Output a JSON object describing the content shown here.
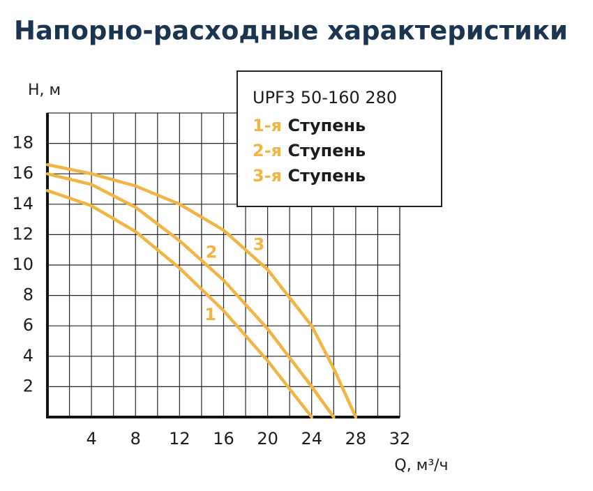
{
  "chart_data": {
    "type": "line",
    "title": "Напорно-расходные  характеристики",
    "y_label": "H, м",
    "x_label": "Q, м³/ч",
    "legend_title": "UPF3 50-160 280",
    "xlim": [
      0,
      32
    ],
    "ylim": [
      0,
      20
    ],
    "xticks": [
      4,
      8,
      12,
      16,
      20,
      24,
      28,
      32
    ],
    "x_minor_ticks": [
      2,
      6,
      10,
      14,
      18,
      22,
      26,
      30
    ],
    "yticks": [
      2,
      4,
      6,
      8,
      10,
      12,
      14,
      16,
      18
    ],
    "grid": true,
    "color": "#f2b443",
    "series": [
      {
        "name": "1-я Ступень",
        "label": "1",
        "label_x": 14.8,
        "label_y": 6.7,
        "x": [
          0,
          4,
          8,
          12,
          16,
          20,
          24
        ],
        "values": [
          14.9,
          13.9,
          12.2,
          9.8,
          7,
          3.7,
          0
        ]
      },
      {
        "name": "2-я Ступень",
        "label": "2",
        "label_x": 14.9,
        "label_y": 10.8,
        "x": [
          0,
          4,
          8,
          12,
          16,
          20,
          24,
          26
        ],
        "values": [
          16,
          15.3,
          13.8,
          11.6,
          9,
          5.8,
          2,
          0
        ]
      },
      {
        "name": "3-я Ступень",
        "label": "3",
        "label_x": 19.2,
        "label_y": 11.3,
        "x": [
          0,
          4,
          8,
          12,
          16,
          20,
          24,
          26,
          28
        ],
        "values": [
          16.6,
          16,
          15.2,
          14,
          12.3,
          9.7,
          6,
          3.2,
          0
        ]
      }
    ]
  }
}
